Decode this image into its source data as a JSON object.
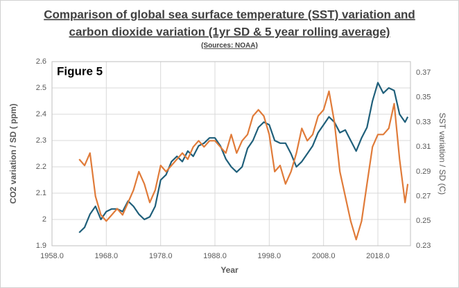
{
  "chart_data": {
    "type": "line",
    "title": [
      "Comparison of global sea surface temperature (SST) variation and",
      "carbon dioxide variation (1yr SD & 5 year rolling average)"
    ],
    "subtitle": "(Sources: NOAA)",
    "annotation": "Figure 5",
    "x_label": "Year",
    "y_label": "CO2 variation / SD ( ppm)",
    "y2_label": "SST variation / SD (C)",
    "grid": true,
    "xlim": [
      1958,
      2024
    ],
    "xticks": [
      {
        "value": 1958,
        "label": "1958.0"
      },
      {
        "value": 1968,
        "label": "1968.0"
      },
      {
        "value": 1978,
        "label": "1978.0"
      },
      {
        "value": 1988,
        "label": "1988.0"
      },
      {
        "value": 1998,
        "label": "1998.0"
      },
      {
        "value": 2008,
        "label": "2008.0"
      },
      {
        "value": 2018,
        "label": "2018.0"
      }
    ],
    "ylim": [
      1.9,
      2.6
    ],
    "yticks": [
      1.9,
      2,
      2.1,
      2.2,
      2.3,
      2.4,
      2.5,
      2.6
    ],
    "y2lim": [
      0.23,
      0.379
    ],
    "y2ticks": [
      0.23,
      0.25,
      0.27,
      0.29,
      0.31,
      0.33,
      0.35,
      0.37
    ],
    "x": [
      1963,
      1964,
      1965,
      1966,
      1967,
      1968,
      1969,
      1970,
      1971,
      1972,
      1973,
      1974,
      1975,
      1976,
      1977,
      1978,
      1979,
      1980,
      1981,
      1982,
      1983,
      1984,
      1985,
      1986,
      1987,
      1988,
      1989,
      1990,
      1991,
      1992,
      1993,
      1994,
      1995,
      1996,
      1997,
      1998,
      1999,
      2000,
      2001,
      2002,
      2003,
      2004,
      2005,
      2006,
      2007,
      2008,
      2009,
      2010,
      2011,
      2012,
      2013,
      2014,
      2015,
      2016,
      2017,
      2018,
      2019,
      2020,
      2021,
      2022,
      2023,
      2023.5
    ],
    "series": [
      {
        "name": "CO2",
        "color": "#1f5f7a",
        "axis": "y",
        "values": [
          1.95,
          1.97,
          2.02,
          2.05,
          2.0,
          2.03,
          2.04,
          2.04,
          2.03,
          2.07,
          2.05,
          2.02,
          2.0,
          2.01,
          2.05,
          2.15,
          2.17,
          2.22,
          2.24,
          2.22,
          2.26,
          2.24,
          2.28,
          2.29,
          2.31,
          2.31,
          2.28,
          2.23,
          2.2,
          2.18,
          2.2,
          2.27,
          2.3,
          2.35,
          2.37,
          2.36,
          2.3,
          2.29,
          2.29,
          2.25,
          2.2,
          2.22,
          2.25,
          2.28,
          2.33,
          2.36,
          2.39,
          2.37,
          2.33,
          2.34,
          2.3,
          2.26,
          2.31,
          2.35,
          2.45,
          2.52,
          2.48,
          2.5,
          2.49,
          2.4,
          2.37,
          2.39
        ]
      },
      {
        "name": "SST",
        "color": "#e07b39",
        "axis": "y2",
        "values": [
          0.3,
          0.295,
          0.305,
          0.27,
          0.255,
          0.25,
          0.255,
          0.26,
          0.255,
          0.265,
          0.275,
          0.29,
          0.28,
          0.265,
          0.275,
          0.295,
          0.29,
          0.295,
          0.3,
          0.305,
          0.3,
          0.31,
          0.315,
          0.31,
          0.315,
          0.315,
          0.31,
          0.305,
          0.32,
          0.305,
          0.315,
          0.32,
          0.335,
          0.34,
          0.335,
          0.32,
          0.29,
          0.295,
          0.28,
          0.29,
          0.305,
          0.325,
          0.315,
          0.32,
          0.335,
          0.34,
          0.355,
          0.33,
          0.29,
          0.27,
          0.25,
          0.235,
          0.25,
          0.28,
          0.31,
          0.32,
          0.32,
          0.325,
          0.345,
          0.3,
          0.265,
          0.28
        ]
      }
    ]
  }
}
